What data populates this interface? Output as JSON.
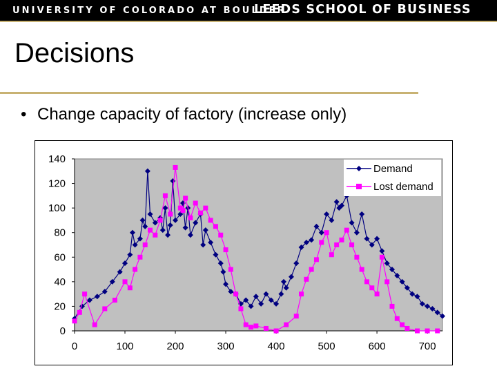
{
  "header": {
    "university": "UNIVERSITY OF COLORADO AT BOULDER",
    "school": "LEEDS SCHOOL OF BUSINESS"
  },
  "slide": {
    "title": "Decisions",
    "bullet": "Change capacity of factory (increase only)",
    "bullet_glyph": "•"
  },
  "colors": {
    "header_bg": "#000000",
    "accent_gold": "#c8b273",
    "plot_bg": "#c0c0c0",
    "demand": "#000080",
    "lost_demand": "#ff00ff"
  },
  "chart_data": {
    "type": "line",
    "title": "",
    "xlabel": "",
    "ylabel": "",
    "xlim": [
      0,
      730
    ],
    "ylim": [
      0,
      140
    ],
    "xticks": [
      0,
      100,
      200,
      300,
      400,
      500,
      600,
      700
    ],
    "yticks": [
      0,
      20,
      40,
      60,
      80,
      100,
      120,
      140
    ],
    "grid": false,
    "legend_position": "top-right",
    "series": [
      {
        "name": "Demand",
        "color": "#000080",
        "marker": "diamond",
        "x": [
          0,
          15,
          30,
          45,
          60,
          75,
          90,
          100,
          110,
          115,
          120,
          130,
          135,
          140,
          145,
          150,
          160,
          170,
          175,
          180,
          185,
          190,
          195,
          200,
          210,
          215,
          220,
          225,
          230,
          240,
          250,
          255,
          260,
          270,
          280,
          290,
          295,
          300,
          310,
          320,
          330,
          340,
          350,
          360,
          370,
          380,
          390,
          400,
          410,
          415,
          420,
          430,
          440,
          450,
          460,
          470,
          480,
          490,
          500,
          510,
          520,
          525,
          530,
          540,
          550,
          560,
          570,
          580,
          590,
          600,
          610,
          620,
          630,
          640,
          650,
          660,
          670,
          680,
          690,
          700,
          710,
          720,
          730
        ],
        "y": [
          10,
          20,
          25,
          28,
          32,
          40,
          48,
          55,
          62,
          80,
          70,
          75,
          90,
          85,
          130,
          95,
          88,
          92,
          82,
          100,
          78,
          86,
          122,
          90,
          95,
          104,
          84,
          100,
          78,
          88,
          95,
          70,
          82,
          72,
          62,
          55,
          48,
          38,
          32,
          30,
          22,
          25,
          20,
          28,
          22,
          30,
          25,
          22,
          30,
          40,
          35,
          44,
          55,
          68,
          72,
          74,
          85,
          80,
          95,
          90,
          105,
          100,
          102,
          110,
          88,
          80,
          95,
          75,
          70,
          75,
          65,
          55,
          50,
          45,
          40,
          35,
          30,
          28,
          22,
          20,
          18,
          15,
          12
        ]
      },
      {
        "name": "Lost demand",
        "color": "#ff00ff",
        "marker": "square",
        "x": [
          0,
          10,
          20,
          40,
          60,
          80,
          100,
          110,
          120,
          130,
          140,
          150,
          160,
          170,
          180,
          190,
          200,
          210,
          215,
          220,
          230,
          240,
          250,
          260,
          270,
          280,
          290,
          300,
          310,
          320,
          330,
          340,
          350,
          360,
          380,
          400,
          420,
          440,
          450,
          460,
          470,
          480,
          490,
          500,
          510,
          520,
          530,
          540,
          550,
          560,
          570,
          580,
          590,
          600,
          610,
          620,
          630,
          640,
          650,
          660,
          680,
          700,
          720
        ],
        "y": [
          8,
          15,
          30,
          5,
          18,
          25,
          40,
          35,
          50,
          60,
          70,
          82,
          78,
          90,
          110,
          95,
          133,
          100,
          98,
          108,
          92,
          104,
          96,
          100,
          90,
          85,
          78,
          66,
          50,
          30,
          18,
          5,
          3,
          4,
          2,
          0,
          5,
          12,
          30,
          42,
          50,
          58,
          72,
          80,
          62,
          70,
          74,
          82,
          70,
          60,
          50,
          40,
          35,
          30,
          60,
          40,
          20,
          10,
          5,
          2,
          0,
          0,
          0
        ]
      }
    ]
  }
}
